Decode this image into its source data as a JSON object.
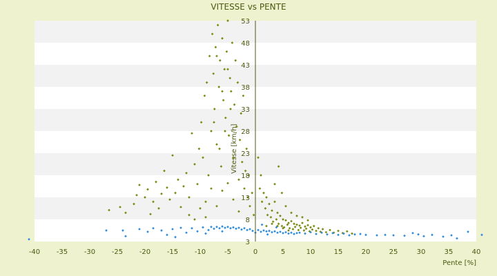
{
  "chart_data": {
    "type": "scatter",
    "title": "VITESSE vs PENTE",
    "xlabel": "Pente [%]",
    "ylabel": "Vitesse [km/h]",
    "xlim": [
      -40,
      40
    ],
    "ylim": [
      3,
      53
    ],
    "x_ticks": [
      -40,
      -35,
      -30,
      -25,
      -20,
      -15,
      -10,
      -5,
      0,
      5,
      10,
      15,
      20,
      25,
      30,
      35,
      40
    ],
    "y_ticks": [
      3,
      8,
      13,
      18,
      23,
      28,
      33,
      38,
      43,
      48,
      53
    ],
    "grid": "horizontal alternating bands",
    "legend": "none",
    "colors": {
      "background": "#eef2cf",
      "band_light": "#ffffff",
      "band_dark": "#f2f2f2",
      "axis": "#4a5a10",
      "series_vitesse": "#7a8a10",
      "series_baseline": "#2f8be0"
    },
    "series": [
      {
        "name": "",
        "color": "#7a8a10",
        "points": [
          [
            -26.5,
            10.1
          ],
          [
            -24.5,
            10.8
          ],
          [
            -23.5,
            9.5
          ],
          [
            -22,
            11.5
          ],
          [
            -21.5,
            13.5
          ],
          [
            -21,
            15.8
          ],
          [
            -20,
            13
          ],
          [
            -19.5,
            14.8
          ],
          [
            -19,
            9.2
          ],
          [
            -18.5,
            12
          ],
          [
            -18,
            16.5
          ],
          [
            -17.5,
            10.5
          ],
          [
            -17,
            13.8
          ],
          [
            -16.5,
            19
          ],
          [
            -16,
            15.2
          ],
          [
            -15.5,
            12.5
          ],
          [
            -15,
            22.5
          ],
          [
            -14.5,
            14
          ],
          [
            -14,
            17
          ],
          [
            -13.5,
            10.8
          ],
          [
            -13,
            15.5
          ],
          [
            -12.5,
            18.5
          ],
          [
            -12,
            13
          ],
          [
            -11.5,
            27.5
          ],
          [
            -11,
            20.5
          ],
          [
            -10.5,
            16
          ],
          [
            -10.2,
            24
          ],
          [
            -9.8,
            30
          ],
          [
            -9.5,
            22
          ],
          [
            -9.2,
            36
          ],
          [
            -9,
            12
          ],
          [
            -8.8,
            39
          ],
          [
            -8.5,
            18
          ],
          [
            -8.3,
            45
          ],
          [
            -8,
            28
          ],
          [
            -7.8,
            50
          ],
          [
            -7.6,
            41
          ],
          [
            -7.4,
            33
          ],
          [
            -7.2,
            47
          ],
          [
            -7,
            25
          ],
          [
            -6.8,
            52
          ],
          [
            -6.6,
            38
          ],
          [
            -6.4,
            44
          ],
          [
            -6.2,
            20
          ],
          [
            -6,
            49
          ],
          [
            -5.8,
            35
          ],
          [
            -5.6,
            42
          ],
          [
            -5.4,
            31
          ],
          [
            -5.2,
            46
          ],
          [
            -5,
            53
          ],
          [
            -4.8,
            27
          ],
          [
            -4.6,
            40
          ],
          [
            -4.4,
            37
          ],
          [
            -4.2,
            48
          ],
          [
            -4,
            22
          ],
          [
            -3.8,
            34
          ],
          [
            -3.6,
            44
          ],
          [
            -3.4,
            29
          ],
          [
            -3.2,
            39
          ],
          [
            -3,
            17
          ],
          [
            -2.8,
            26
          ],
          [
            -2.6,
            32
          ],
          [
            -2.4,
            21
          ],
          [
            -2.2,
            36
          ],
          [
            -2,
            15
          ],
          [
            -1.8,
            19
          ],
          [
            -1.6,
            24
          ],
          [
            -1.4,
            13
          ],
          [
            -1.2,
            18
          ],
          [
            -1,
            11
          ],
          [
            -0.6,
            14
          ],
          [
            -0.3,
            9
          ],
          [
            -7,
            11
          ],
          [
            -6,
            14.5
          ],
          [
            -5,
            16.2
          ],
          [
            -4,
            12.5
          ],
          [
            -3,
            9.8
          ],
          [
            -8,
            15
          ],
          [
            -9,
            8.5
          ],
          [
            -10,
            10.5
          ],
          [
            -11,
            8
          ],
          [
            -12,
            9
          ],
          [
            -6.5,
            24
          ],
          [
            -7.5,
            30
          ],
          [
            -5.5,
            28
          ],
          [
            -4.5,
            33
          ],
          [
            -6,
            37
          ],
          [
            -5,
            42
          ],
          [
            -7,
            45
          ],
          [
            0.5,
            22
          ],
          [
            0.8,
            15
          ],
          [
            1,
            18
          ],
          [
            1.2,
            12
          ],
          [
            1.5,
            14
          ],
          [
            1.8,
            10.5
          ],
          [
            2,
            13
          ],
          [
            2.2,
            9
          ],
          [
            2.5,
            11.5
          ],
          [
            2.8,
            8.5
          ],
          [
            3,
            10
          ],
          [
            3.2,
            7.5
          ],
          [
            3.5,
            12
          ],
          [
            3.8,
            8
          ],
          [
            4,
            9.5
          ],
          [
            4.2,
            7
          ],
          [
            4.5,
            8.8
          ],
          [
            4.8,
            6.5
          ],
          [
            5,
            8
          ],
          [
            5.2,
            6.2
          ],
          [
            5.5,
            7.8
          ],
          [
            5.8,
            6.8
          ],
          [
            6,
            7.2
          ],
          [
            6.2,
            6
          ],
          [
            6.5,
            7.6
          ],
          [
            6.8,
            5.8
          ],
          [
            7,
            7
          ],
          [
            7.2,
            6.3
          ],
          [
            7.5,
            6.8
          ],
          [
            7.8,
            5.6
          ],
          [
            8,
            6.6
          ],
          [
            8.2,
            6.1
          ],
          [
            8.5,
            7.2
          ],
          [
            8.8,
            5.5
          ],
          [
            9,
            6.4
          ],
          [
            9.2,
            5.9
          ],
          [
            9.5,
            6.7
          ],
          [
            9.8,
            5.3
          ],
          [
            10,
            6.2
          ],
          [
            10.3,
            5.7
          ],
          [
            10.6,
            6.5
          ],
          [
            11,
            5.4
          ],
          [
            11.4,
            6
          ],
          [
            11.8,
            5.2
          ],
          [
            12.2,
            5.8
          ],
          [
            12.8,
            5.1
          ],
          [
            13.5,
            5.6
          ],
          [
            14.2,
            5
          ],
          [
            15,
            5.4
          ],
          [
            15.8,
            4.9
          ],
          [
            16.6,
            5.3
          ],
          [
            17.5,
            4.8
          ],
          [
            4.2,
            20
          ],
          [
            3.5,
            16
          ],
          [
            4.8,
            14
          ],
          [
            5.5,
            11
          ],
          [
            6.5,
            9.5
          ],
          [
            7.5,
            8.8
          ],
          [
            8.5,
            8.5
          ],
          [
            9.5,
            7.8
          ],
          [
            3,
            7
          ],
          [
            4,
            6.5
          ],
          [
            5,
            6
          ],
          [
            6,
            5.5
          ],
          [
            2,
            6.5
          ]
        ]
      },
      {
        "name": "",
        "color": "#2f8be0",
        "points": [
          [
            -41,
            3.5
          ],
          [
            -27,
            5.5
          ],
          [
            -24,
            5.5
          ],
          [
            -23.5,
            4.2
          ],
          [
            -21,
            5.8
          ],
          [
            -19.5,
            5.2
          ],
          [
            -18.5,
            6
          ],
          [
            -17,
            5.5
          ],
          [
            -16,
            4.5
          ],
          [
            -15,
            5.8
          ],
          [
            -14.5,
            4
          ],
          [
            -13.5,
            6.1
          ],
          [
            -12.5,
            5
          ],
          [
            -11.5,
            6
          ],
          [
            -10.5,
            5.3
          ],
          [
            -9.5,
            6.2
          ],
          [
            -8.5,
            5.6
          ],
          [
            -8,
            6.3
          ],
          [
            -7.5,
            5.9
          ],
          [
            -7,
            6.3
          ],
          [
            -6.5,
            6
          ],
          [
            -6,
            6.4
          ],
          [
            -5.5,
            6.1
          ],
          [
            -5,
            6.3
          ],
          [
            -4.5,
            6
          ],
          [
            -4,
            6.2
          ],
          [
            -3.5,
            5.9
          ],
          [
            -3,
            6.1
          ],
          [
            -2.5,
            5.7
          ],
          [
            -2,
            6
          ],
          [
            -1.5,
            5.6
          ],
          [
            -1,
            5.8
          ],
          [
            -0.5,
            5.4
          ],
          [
            0,
            5
          ],
          [
            0.5,
            5.6
          ],
          [
            1,
            5.2
          ],
          [
            1.5,
            5.5
          ],
          [
            2,
            5.3
          ],
          [
            2.5,
            5.4
          ],
          [
            3,
            5.1
          ],
          [
            3.5,
            5.3
          ],
          [
            4,
            5
          ],
          [
            4.5,
            5.2
          ],
          [
            5,
            4.9
          ],
          [
            5.5,
            5.1
          ],
          [
            6,
            4.8
          ],
          [
            6.5,
            5
          ],
          [
            7,
            4.7
          ],
          [
            7.5,
            4.9
          ],
          [
            8,
            5
          ],
          [
            9,
            4.8
          ],
          [
            10,
            5.1
          ],
          [
            11,
            4.7
          ],
          [
            12,
            5
          ],
          [
            13,
            4.6
          ],
          [
            14,
            4.9
          ],
          [
            15,
            4.5
          ],
          [
            16,
            4.8
          ],
          [
            17,
            4.4
          ],
          [
            18,
            4.6
          ],
          [
            19,
            4.7
          ],
          [
            20,
            4.5
          ],
          [
            22,
            4.4
          ],
          [
            23.5,
            4.5
          ],
          [
            25,
            4.4
          ],
          [
            27,
            4.3
          ],
          [
            28.5,
            4.9
          ],
          [
            29.5,
            4.6
          ],
          [
            30.5,
            4.2
          ],
          [
            32,
            4.5
          ],
          [
            34,
            4.1
          ],
          [
            35.5,
            4.4
          ],
          [
            36.5,
            3.7
          ],
          [
            38.5,
            5.2
          ],
          [
            41,
            4.5
          ],
          [
            -6,
            5.3
          ],
          [
            -9,
            4.8
          ],
          [
            1.2,
            6.8
          ],
          [
            2.2,
            4.6
          ],
          [
            3.8,
            6.2
          ]
        ]
      }
    ]
  }
}
